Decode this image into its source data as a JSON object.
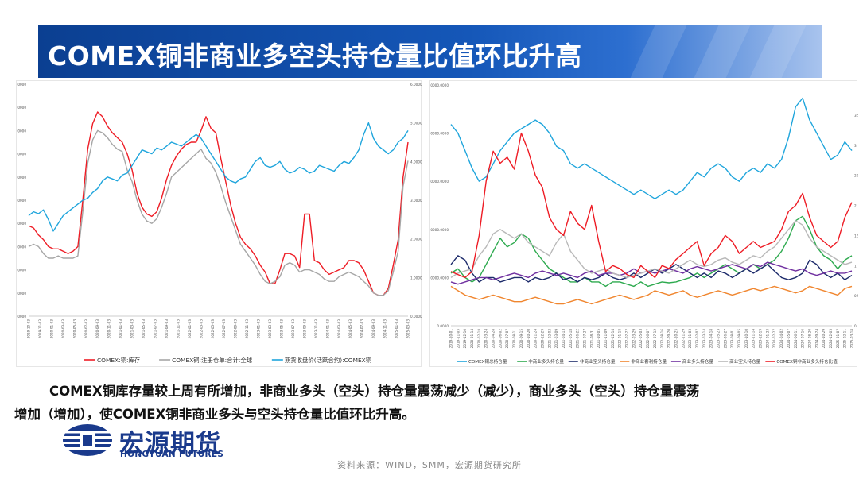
{
  "title": "COMEX铜非商业多空头持仓量比值环比升高",
  "summary": {
    "line1": "COMEX铜库存量较上周有所增加，非商业多头（空头）持仓量震荡减少（减少），商业多头（空头）持仓量震荡",
    "line2": "增加（增加），使COMEX铜非商业多头与空头持仓量比值环比升高。"
  },
  "logo": {
    "cn": "宏源期货",
    "en": "HONGYUAN FUTURES"
  },
  "source": "资料来源：WIND，SMM，宏源期货研究所",
  "colors": {
    "title_bg": "#0b3f91",
    "red": "#ee1c25",
    "gray": "#a6a6a6",
    "blue": "#1fa5dc",
    "green": "#2eaa4f",
    "navy": "#1d2b6b",
    "orange": "#f0862f",
    "purple": "#7030a0",
    "lightgray": "#b8b8b8"
  },
  "chart_data": [
    {
      "type": "line",
      "left_axis": {
        "ticks": [
          "0.0000",
          "10000.0000",
          "20000.0000",
          "30000.0000",
          "40000.0000",
          "50000.0000",
          "60000.0000",
          "70000.0000",
          "80000.0000",
          "90000.0000",
          "100000.0000"
        ],
        "ylim": [
          0,
          100000
        ]
      },
      "right_axis": {
        "ticks": [
          "0.0000",
          "1.0000",
          "2.0000",
          "3.0000",
          "4.0000",
          "5.0000",
          "6.0000"
        ],
        "ylim": [
          0,
          6
        ]
      },
      "x_ticks": [
        "2019-10-03",
        "2019-11-03",
        "2020-01-03",
        "2020-03-03",
        "2020-05-03",
        "2020-07-03",
        "2020-09-03",
        "2020-11-03",
        "2021-01-03",
        "2021-03-03",
        "2021-05-03",
        "2021-07-03",
        "2021-09-03",
        "2021-11-03",
        "2022-01-03",
        "2022-03-03",
        "2022-05-03",
        "2022-07-03",
        "2022-09-03",
        "2022-11-03",
        "2023-01-03",
        "2023-03-03",
        "2023-05-03",
        "2023-07-03",
        "2023-09-03",
        "2023-11-03",
        "2024-01-03",
        "2024-03-03",
        "2024-05-03",
        "2024-07-03",
        "2024-09-03",
        "2024-11-03",
        "2025-01-03",
        "2025-03-03"
      ],
      "legend": [
        "COMEX:铜:库存",
        "COMEX铜:注册仓单:合计:全球",
        "期货收盘价(活跃合约):COMEX铜"
      ],
      "series": [
        {
          "name": "COMEX:铜:库存",
          "axis": "left",
          "color": "#ee1c25",
          "values": [
            39000,
            38000,
            35000,
            33000,
            30000,
            29000,
            29000,
            28000,
            27000,
            28000,
            30000,
            50000,
            72000,
            83000,
            88000,
            86000,
            82000,
            79000,
            77000,
            75000,
            70000,
            63000,
            53000,
            47000,
            44000,
            43000,
            45000,
            51000,
            59000,
            65000,
            69000,
            72000,
            74000,
            75000,
            75000,
            80000,
            86000,
            81000,
            79000,
            68000,
            58000,
            48000,
            40000,
            34000,
            31000,
            29000,
            26000,
            22000,
            19000,
            14000,
            14000,
            20000,
            27000,
            27000,
            26000,
            21000,
            44000,
            44000,
            24000,
            23000,
            20000,
            18000,
            19000,
            20000,
            21000,
            24000,
            24000,
            23000,
            20000,
            15000,
            10000,
            9000,
            9000,
            12000,
            22000,
            33000,
            60000,
            75000
          ]
        },
        {
          "name": "COMEX铜:注册仓单:合计:全球",
          "axis": "left",
          "color": "#a6a6a6",
          "values": [
            30000,
            31000,
            30000,
            27000,
            25000,
            25000,
            26000,
            25000,
            25000,
            25000,
            26000,
            45000,
            66000,
            76000,
            80000,
            79000,
            77000,
            74000,
            72000,
            71000,
            63000,
            58000,
            50000,
            44000,
            41000,
            40000,
            42000,
            47000,
            53000,
            60000,
            62000,
            64000,
            66000,
            68000,
            70000,
            72000,
            68000,
            66000,
            62000,
            56000,
            49000,
            43000,
            37000,
            31000,
            28000,
            25000,
            22000,
            18000,
            15000,
            14000,
            15000,
            17000,
            22000,
            23000,
            22000,
            19000,
            20000,
            20000,
            19000,
            18000,
            16000,
            15000,
            15000,
            17000,
            18000,
            19000,
            18000,
            17000,
            15000,
            13000,
            10000,
            9000,
            9000,
            11000,
            19000,
            28000,
            56000,
            67000
          ]
        },
        {
          "name": "期货收盘价(活跃合约):COMEX铜",
          "axis": "right",
          "color": "#1fa5dc",
          "values": [
            2.6,
            2.7,
            2.65,
            2.75,
            2.5,
            2.2,
            2.4,
            2.6,
            2.7,
            2.8,
            2.9,
            3.0,
            3.05,
            3.2,
            3.3,
            3.5,
            3.6,
            3.55,
            3.5,
            3.65,
            3.7,
            3.9,
            4.1,
            4.3,
            4.25,
            4.2,
            4.35,
            4.3,
            4.4,
            4.5,
            4.45,
            4.4,
            4.5,
            4.6,
            4.7,
            4.6,
            4.4,
            4.2,
            4.0,
            3.8,
            3.6,
            3.5,
            3.45,
            3.55,
            3.6,
            3.8,
            4.0,
            4.1,
            3.9,
            3.85,
            3.9,
            4.0,
            3.8,
            3.7,
            3.75,
            3.85,
            3.8,
            3.7,
            3.75,
            3.9,
            3.85,
            3.8,
            3.75,
            3.9,
            4.0,
            3.95,
            4.1,
            4.3,
            4.7,
            5.0,
            4.6,
            4.4,
            4.3,
            4.2,
            4.3,
            4.5,
            4.6,
            4.8
          ]
        }
      ]
    },
    {
      "type": "line",
      "left_axis": {
        "ticks": [
          "0.0000",
          "10000.0000",
          "20000.0000",
          "30000.0000",
          "40000.0000",
          "50000.0000"
        ],
        "ylim": [
          0,
          55000
        ]
      },
      "right_axis": {
        "ticks": [
          "0",
          "0.5",
          "1",
          "1.5",
          "2",
          "2.5",
          "3",
          "3.5"
        ],
        "ylim": [
          0,
          4
        ]
      },
      "x_ticks": [
        "2019-10-01",
        "2019-11-05",
        "2019-12-10",
        "2020-01-14",
        "2020-02-18",
        "2020-03-24",
        "2020-04-28",
        "2020-06-02",
        "2020-07-07",
        "2020-08-11",
        "2020-09-15",
        "2020-10-20",
        "2020-11-24",
        "2020-12-29",
        "2021-02-02",
        "2021-03-09",
        "2021-04-13",
        "2021-05-18",
        "2021-06-22",
        "2021-07-27",
        "2021-08-31",
        "2021-10-05",
        "2021-11-09",
        "2021-12-14",
        "2022-01-18",
        "2022-02-22",
        "2022-03-29",
        "2022-05-03",
        "2022-06-07",
        "2022-07-12",
        "2022-08-16",
        "2022-09-20",
        "2022-10-25",
        "2022-11-29",
        "2023-01-03",
        "2023-02-07",
        "2023-03-14",
        "2023-04-18",
        "2023-05-23",
        "2023-06-27",
        "2023-08-01",
        "2023-09-05",
        "2023-10-10",
        "2023-11-14",
        "2023-12-19",
        "2024-01-23",
        "2024-02-27",
        "2024-04-02",
        "2024-05-07",
        "2024-06-11",
        "2024-07-16",
        "2024-08-20",
        "2024-09-24",
        "2024-10-29",
        "2024-12-03",
        "2025-01-07",
        "2025-02-11",
        "2025-03-18"
      ],
      "legend": [
        "COMEX铜总持仓量",
        "非商业多头持仓量",
        "非商业空头持仓量",
        "非商业套利持仓量",
        "商业多头持仓量",
        "商业空头持仓量",
        "COMEX铜非商业多头持仓比值"
      ],
      "series": [
        {
          "name": "COMEX铜总持仓量",
          "axis": "left",
          "color": "#1fa5dc",
          "values": [
            46000,
            44000,
            40000,
            36000,
            33000,
            34000,
            37000,
            40000,
            42000,
            44000,
            45000,
            46000,
            47000,
            46000,
            44000,
            41000,
            40000,
            37000,
            36000,
            37000,
            36000,
            35000,
            34000,
            33000,
            32000,
            31000,
            30000,
            31000,
            30000,
            29000,
            30000,
            31000,
            30000,
            31000,
            33000,
            35000,
            34000,
            36000,
            37000,
            36000,
            34000,
            33000,
            35000,
            36000,
            35000,
            37000,
            36000,
            38000,
            43000,
            50000,
            52000,
            47000,
            44000,
            41000,
            38000,
            39000,
            42000,
            40000
          ]
        },
        {
          "name": "非商业多头持仓量",
          "axis": "left",
          "color": "#2eaa4f",
          "values": [
            12000,
            13000,
            11000,
            10000,
            11000,
            14000,
            17000,
            20000,
            18000,
            19000,
            21000,
            20000,
            17000,
            15000,
            13000,
            12000,
            11000,
            10000,
            10000,
            11000,
            10000,
            10000,
            9000,
            10000,
            10000,
            9500,
            9000,
            10000,
            9000,
            9500,
            10000,
            9800,
            10000,
            10500,
            11000,
            12000,
            11000,
            12000,
            13000,
            14000,
            13000,
            12000,
            13000,
            14000,
            13000,
            14000,
            15000,
            17000,
            20000,
            24000,
            25000,
            22000,
            18000,
            16000,
            15000,
            13000,
            15000,
            16000
          ]
        },
        {
          "name": "非商业空头持仓量",
          "axis": "left",
          "color": "#1d2b6b",
          "values": [
            14000,
            16000,
            15000,
            12000,
            10000,
            11000,
            11000,
            10000,
            10500,
            11000,
            11000,
            10000,
            11000,
            10500,
            11000,
            12000,
            10500,
            11000,
            10000,
            11000,
            10500,
            11000,
            12000,
            11000,
            10500,
            11000,
            12000,
            11000,
            12000,
            13000,
            12000,
            13000,
            14000,
            13000,
            12000,
            11000,
            12000,
            11000,
            12500,
            12000,
            11000,
            12000,
            13000,
            12000,
            13000,
            14000,
            12500,
            11000,
            10500,
            11000,
            12000,
            15000,
            14000,
            12000,
            11000,
            12000,
            10500,
            11500
          ]
        },
        {
          "name": "非商业套利持仓量",
          "axis": "left",
          "color": "#f0862f",
          "values": [
            9000,
            8000,
            7000,
            6500,
            6000,
            6500,
            7000,
            6500,
            6000,
            5500,
            5500,
            6000,
            6500,
            6000,
            5500,
            5000,
            5000,
            5500,
            6000,
            5500,
            5000,
            5500,
            6000,
            6500,
            7000,
            6500,
            6000,
            6500,
            7000,
            8000,
            7500,
            7000,
            7500,
            8000,
            7000,
            6500,
            7000,
            7500,
            8000,
            7500,
            7000,
            7500,
            8000,
            8500,
            8000,
            8500,
            9000,
            8500,
            8000,
            7500,
            8000,
            9000,
            8500,
            8000,
            7500,
            7000,
            8500,
            9000
          ]
        },
        {
          "name": "商业多头持仓量",
          "axis": "left",
          "color": "#7030a0",
          "values": [
            10000,
            9500,
            10000,
            10500,
            11000,
            11000,
            10500,
            11000,
            11500,
            12000,
            11500,
            11000,
            12000,
            12500,
            12000,
            11500,
            12000,
            11500,
            11000,
            12000,
            12500,
            11500,
            12000,
            12000,
            11500,
            12000,
            13000,
            12000,
            12500,
            12000,
            12500,
            13000,
            12500,
            12000,
            13000,
            13500,
            13000,
            12500,
            13000,
            13500,
            14000,
            13500,
            13000,
            14000,
            13500,
            14500,
            14000,
            13500,
            13000,
            12500,
            13000,
            12000,
            11500,
            12000,
            12500,
            12000,
            12000,
            12500
          ]
        },
        {
          "name": "商业空头持仓量",
          "axis": "left",
          "color": "#b8b8b8",
          "values": [
            11000,
            12000,
            12500,
            13000,
            16000,
            18000,
            21000,
            22000,
            21000,
            20000,
            21000,
            19000,
            18000,
            17000,
            16000,
            19000,
            21000,
            17000,
            15000,
            13000,
            12000,
            12500,
            13000,
            12000,
            11500,
            11000,
            11500,
            12000,
            12500,
            13000,
            12500,
            12000,
            13000,
            14000,
            15000,
            14000,
            13500,
            14000,
            15000,
            15500,
            14500,
            14000,
            15000,
            16000,
            15500,
            17000,
            18000,
            20000,
            22000,
            24000,
            23000,
            20000,
            18000,
            17000,
            16000,
            15000,
            14000,
            14500
          ]
        },
        {
          "name": "COMEX铜非商业多头持仓比值",
          "axis": "right",
          "color": "#ee1c25",
          "values": [
            0.9,
            0.85,
            0.8,
            0.9,
            1.5,
            2.4,
            2.9,
            2.7,
            2.8,
            2.6,
            3.2,
            2.9,
            2.5,
            2.3,
            1.8,
            1.6,
            1.5,
            1.9,
            1.7,
            1.6,
            2.0,
            1.4,
            0.9,
            1.0,
            0.95,
            0.85,
            0.8,
            1.0,
            0.9,
            0.8,
            1.0,
            0.95,
            1.1,
            1.2,
            1.3,
            1.4,
            1.0,
            1.2,
            1.3,
            1.5,
            1.4,
            1.2,
            1.3,
            1.4,
            1.3,
            1.35,
            1.4,
            1.6,
            1.9,
            2.0,
            2.2,
            1.8,
            1.5,
            1.4,
            1.3,
            1.4,
            1.8,
            2.05
          ]
        }
      ]
    }
  ]
}
